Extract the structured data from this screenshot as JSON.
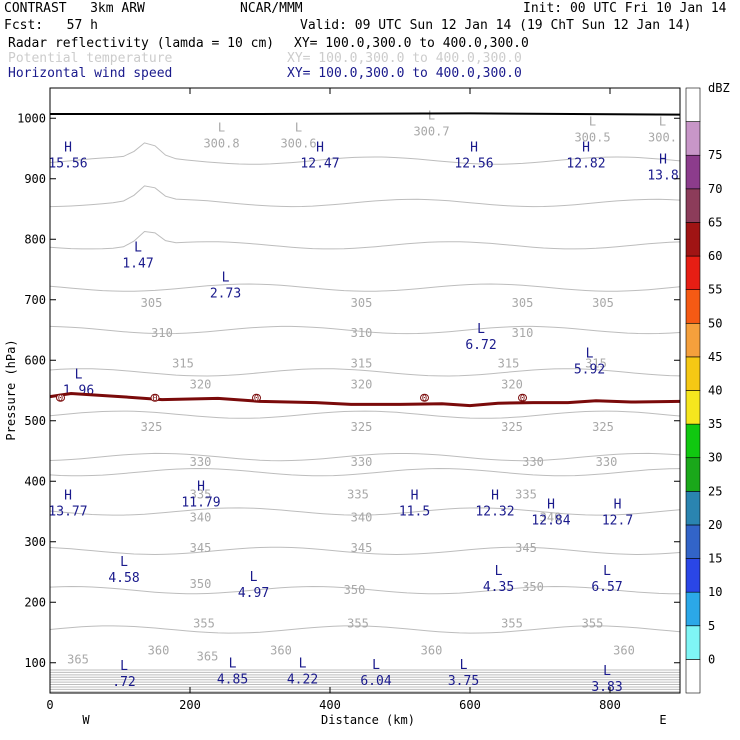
{
  "header": {
    "model": "CONTRAST   3km ARW",
    "org": "NCAR/MMM",
    "init": "Init: 00 UTC Fri 10 Jan 14",
    "fcst": "Fcst:   57 h",
    "valid": "Valid: 09 UTC Sun 12 Jan 14 (19 ChT Sun 12 Jan 14)",
    "fields": [
      {
        "name": "Radar reflectivity (lamda = 10 cm)",
        "xy": "XY= 100.0,300.0 to 400.0,300.0",
        "color": "#000000"
      },
      {
        "name": "Potential temperature",
        "xy": "XY= 100.0,300.0 to 400.0,300.0",
        "color": "#cccccc"
      },
      {
        "name": "Horizontal wind speed",
        "xy": "XY= 100.0,300.0 to 400.0,300.0",
        "color": "#1a1a8c"
      }
    ]
  },
  "colorbar": {
    "unit": "dBZ",
    "labels": [
      "0",
      "5",
      "10",
      "15",
      "20",
      "25",
      "30",
      "35",
      "40",
      "45",
      "50",
      "55",
      "60",
      "65",
      "70",
      "75"
    ],
    "colors": [
      "#ffffff",
      "#7ff5f5",
      "#2ba8e8",
      "#2a46e6",
      "#3264c8",
      "#2a84b0",
      "#1aa81a",
      "#10c810",
      "#f5e61e",
      "#f5c814",
      "#f5a03c",
      "#f55a14",
      "#e61e14",
      "#a01414",
      "#8c3c5a",
      "#8c3c8c",
      "#c896c8",
      "#ffffff"
    ]
  },
  "chart_data": {
    "type": "contour",
    "xlabel": "Distance (km)",
    "ylabel": "Pressure (hPa)",
    "xlim": [
      0,
      900
    ],
    "ylim": [
      1050,
      50
    ],
    "xticks": [
      "0",
      "200",
      "400",
      "600",
      "800"
    ],
    "yticks": [
      "100",
      "200",
      "300",
      "400",
      "500",
      "600",
      "700",
      "800",
      "900",
      "1000"
    ],
    "x_left_label": "W",
    "x_right_label": "E",
    "theta_contours": [
      {
        "level": 365,
        "labels": [
          [
            40,
            105
          ],
          [
            225,
            110
          ]
        ]
      },
      {
        "level": 360,
        "labels": [
          [
            155,
            120
          ],
          [
            330,
            120
          ],
          [
            545,
            120
          ],
          [
            820,
            120
          ]
        ]
      },
      {
        "level": 355,
        "labels": [
          [
            220,
            165
          ],
          [
            440,
            165
          ],
          [
            660,
            165
          ],
          [
            775,
            165
          ]
        ]
      },
      {
        "level": 350,
        "labels": [
          [
            215,
            230
          ],
          [
            435,
            220
          ],
          [
            690,
            225
          ]
        ]
      },
      {
        "level": 345,
        "labels": [
          [
            215,
            290
          ],
          [
            445,
            290
          ],
          [
            680,
            290
          ]
        ]
      },
      {
        "level": 340,
        "labels": [
          [
            215,
            340
          ],
          [
            445,
            340
          ],
          [
            715,
            340
          ]
        ]
      },
      {
        "level": 335,
        "labels": [
          [
            215,
            378
          ],
          [
            440,
            378
          ],
          [
            680,
            378
          ]
        ]
      },
      {
        "level": 330,
        "labels": [
          [
            215,
            432
          ],
          [
            445,
            432
          ],
          [
            690,
            432
          ],
          [
            795,
            432
          ]
        ]
      },
      {
        "level": 325,
        "labels": [
          [
            145,
            490
          ],
          [
            445,
            490
          ],
          [
            660,
            490
          ],
          [
            790,
            490
          ]
        ]
      },
      {
        "level": 320,
        "labels": [
          [
            215,
            560
          ],
          [
            445,
            560
          ],
          [
            660,
            560
          ]
        ]
      },
      {
        "level": 315,
        "labels": [
          [
            190,
            595
          ],
          [
            445,
            595
          ],
          [
            655,
            595
          ],
          [
            780,
            595
          ]
        ]
      },
      {
        "level": 310,
        "labels": [
          [
            160,
            645
          ],
          [
            445,
            645
          ],
          [
            675,
            645
          ]
        ]
      },
      {
        "level": 305,
        "labels": [
          [
            145,
            695
          ],
          [
            445,
            695
          ],
          [
            675,
            695
          ],
          [
            790,
            695
          ]
        ]
      }
    ],
    "wind_extrema": [
      {
        "type": "L",
        "value": ".72",
        "x": 100,
        "y": 78
      },
      {
        "type": "L",
        "value": "4.85",
        "x": 255,
        "y": 82
      },
      {
        "type": "L",
        "value": "4.22",
        "x": 355,
        "y": 82
      },
      {
        "type": "L",
        "value": "6.04",
        "x": 460,
        "y": 80
      },
      {
        "type": "L",
        "value": "3.75",
        "x": 585,
        "y": 80
      },
      {
        "type": "L",
        "value": "3.83",
        "x": 790,
        "y": 70
      },
      {
        "type": "L",
        "value": "4.58",
        "x": 100,
        "y": 250
      },
      {
        "type": "L",
        "value": "4.97",
        "x": 285,
        "y": 225
      },
      {
        "type": "L",
        "value": "4.35",
        "x": 635,
        "y": 235
      },
      {
        "type": "L",
        "value": "6.57",
        "x": 790,
        "y": 235
      },
      {
        "type": "H",
        "value": "13.77",
        "x": 20,
        "y": 360
      },
      {
        "type": "H",
        "value": "11.79",
        "x": 210,
        "y": 375
      },
      {
        "type": "H",
        "value": "11.5",
        "x": 515,
        "y": 360
      },
      {
        "type": "H",
        "value": "12.32",
        "x": 630,
        "y": 360
      },
      {
        "type": "H",
        "value": "12.84",
        "x": 710,
        "y": 345
      },
      {
        "type": "H",
        "value": "12.7",
        "x": 805,
        "y": 345
      },
      {
        "type": "L",
        "value": "1.96",
        "x": 35,
        "y": 560
      },
      {
        "type": "L",
        "value": "5.92",
        "x": 765,
        "y": 595
      },
      {
        "type": "L",
        "value": "6.72",
        "x": 610,
        "y": 635
      },
      {
        "type": "L",
        "value": "1.47",
        "x": 120,
        "y": 770
      },
      {
        "type": "L",
        "value": "2.73",
        "x": 245,
        "y": 720
      },
      {
        "type": "H",
        "value": "15.56",
        "x": 20,
        "y": 935
      },
      {
        "type": "H",
        "value": "12.47",
        "x": 380,
        "y": 935
      },
      {
        "type": "H",
        "value": "12.56",
        "x": 600,
        "y": 935
      },
      {
        "type": "H",
        "value": "12.82",
        "x": 760,
        "y": 935
      },
      {
        "type": "H",
        "value": "13.8",
        "x": 870,
        "y": 915
      }
    ],
    "theta_minima": [
      {
        "type": "L",
        "value": "300.8",
        "x": 245,
        "y": 965
      },
      {
        "type": "L",
        "value": "300.6",
        "x": 355,
        "y": 965
      },
      {
        "type": "L",
        "value": "300.7",
        "x": 545,
        "y": 985
      },
      {
        "type": "L",
        "value": "300.5",
        "x": 775,
        "y": 975
      },
      {
        "type": "L",
        "value": "300.",
        "x": 875,
        "y": 975
      }
    ],
    "zero_dbz_line": [
      [
        0,
        540
      ],
      [
        30,
        545
      ],
      [
        100,
        540
      ],
      [
        160,
        535
      ],
      [
        240,
        537
      ],
      [
        300,
        532
      ],
      [
        380,
        530
      ],
      [
        430,
        527
      ],
      [
        500,
        527
      ],
      [
        560,
        528
      ],
      [
        600,
        525
      ],
      [
        640,
        529
      ],
      [
        690,
        530
      ],
      [
        740,
        530
      ],
      [
        780,
        533
      ],
      [
        830,
        531
      ],
      [
        900,
        532
      ]
    ],
    "zero_dbz_labels": [
      [
        15,
        "0"
      ],
      [
        150,
        "0"
      ],
      [
        295,
        "0"
      ],
      [
        535,
        "0"
      ],
      [
        675,
        "0"
      ]
    ],
    "surface_line": [
      [
        0,
        1007
      ],
      [
        300,
        1007
      ],
      [
        600,
        1008
      ],
      [
        900,
        1006
      ]
    ]
  }
}
